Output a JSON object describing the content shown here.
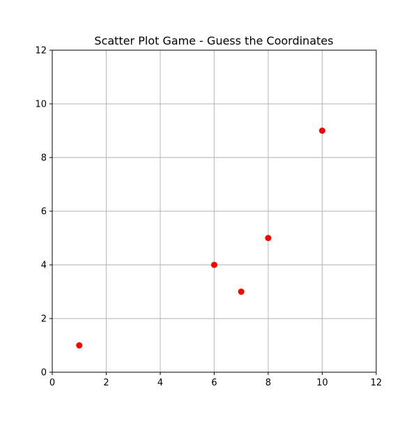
{
  "chart_data": {
    "type": "scatter",
    "title": "Scatter Plot Game - Guess the Coordinates",
    "xlabel": "",
    "ylabel": "",
    "xlim": [
      0,
      12
    ],
    "ylim": [
      0,
      12
    ],
    "xticks": [
      0,
      2,
      4,
      6,
      8,
      10,
      12
    ],
    "yticks": [
      0,
      2,
      4,
      6,
      8,
      10,
      12
    ],
    "grid": true,
    "legend": "none",
    "series": [
      {
        "color": "#ff0000",
        "marker": "circle",
        "points": [
          {
            "x": 1,
            "y": 1
          },
          {
            "x": 6,
            "y": 4
          },
          {
            "x": 7,
            "y": 3
          },
          {
            "x": 8,
            "y": 5
          },
          {
            "x": 10,
            "y": 9
          }
        ]
      }
    ]
  }
}
